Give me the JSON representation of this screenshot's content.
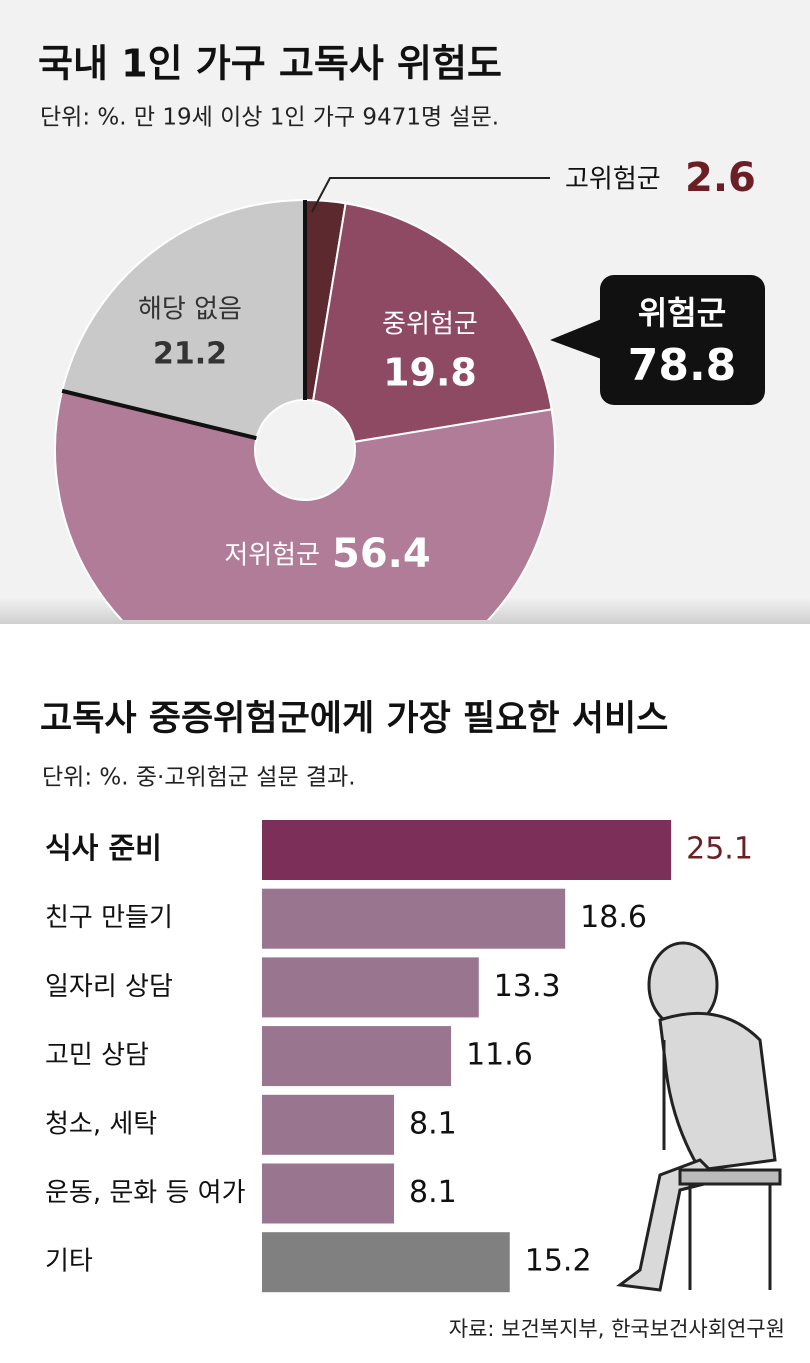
{
  "chart_data": [
    {
      "type": "pie",
      "title": "국내 1인 가구 고독사 위험도",
      "subtitle": "단위: %. 만 19세 이상 1인 가구 9471명 설문.",
      "categories": [
        "고위험군",
        "중위험군",
        "저위험군",
        "해당 없음"
      ],
      "values": [
        2.6,
        19.8,
        56.4,
        21.2
      ],
      "colors": [
        "#5c2a2e",
        "#8f4a63",
        "#b07c97",
        "#c9c9c9"
      ],
      "group_label": "위험군",
      "group_value": 78.8
    },
    {
      "type": "hbar",
      "title": "고독사 중증위험군에게 가장 필요한 서비스",
      "subtitle": "단위: %. 중·고위험군 설문 결과.",
      "categories": [
        "식사 준비",
        "친구 만들기",
        "일자리 상담",
        "고민 상담",
        "청소, 세탁",
        "운동, 문화 등 여가",
        "기타"
      ],
      "values": [
        25.1,
        18.6,
        13.3,
        11.6,
        8.1,
        8.1,
        15.2
      ],
      "colors": [
        "#7b2f59",
        "#9a7590",
        "#9a7590",
        "#9a7590",
        "#9a7590",
        "#9a7590",
        "#808080"
      ],
      "source": "자료: 보건복지부, 한국보건사회연구원"
    }
  ]
}
